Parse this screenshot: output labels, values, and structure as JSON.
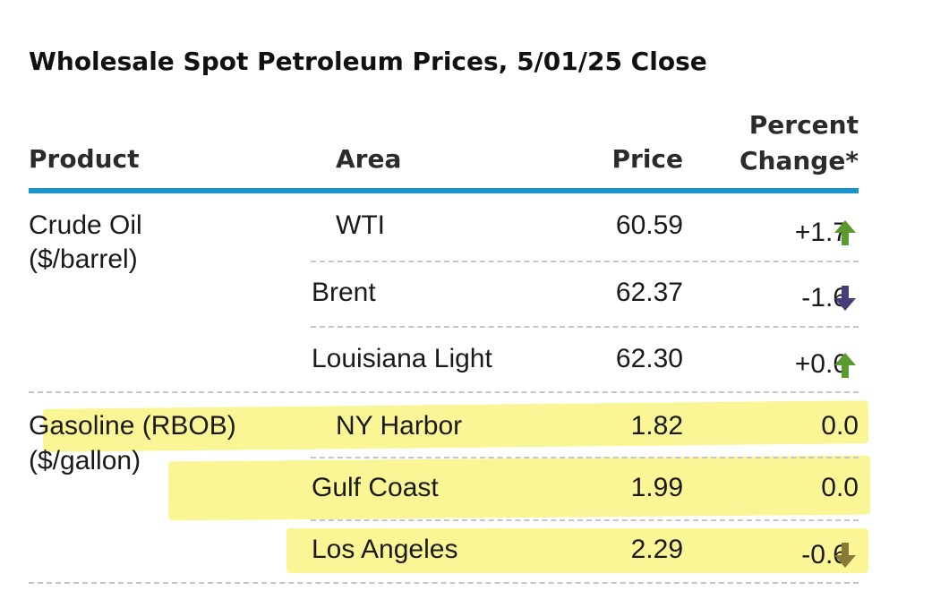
{
  "title": "Wholesale Spot Petroleum Prices, 5/01/25 Close",
  "headers": {
    "product": "Product",
    "area": "Area",
    "price": "Price",
    "percent_line1": "Percent",
    "percent_line2": "Change*"
  },
  "colors": {
    "rule": "#1d94c9",
    "up": "#5a9a2f",
    "down": "#4a3b7a",
    "highlight": "#fbf58a"
  },
  "groups": [
    {
      "product": "Crude Oil",
      "unit": "($/barrel)",
      "rows": [
        {
          "area": "WTI",
          "price": "60.59",
          "change": "+1.7",
          "direction": "up"
        },
        {
          "area": "Brent",
          "price": "62.37",
          "change": "-1.6",
          "direction": "down"
        },
        {
          "area": "Louisiana Light",
          "price": "62.30",
          "change": "+0.6",
          "direction": "up"
        }
      ]
    },
    {
      "product": "Gasoline (RBOB)",
      "unit": "($/gallon)",
      "rows": [
        {
          "area": "NY Harbor",
          "price": "1.82",
          "change": "0.0",
          "direction": "none"
        },
        {
          "area": "Gulf Coast",
          "price": "1.99",
          "change": "0.0",
          "direction": "none"
        },
        {
          "area": "Los Angeles",
          "price": "2.29",
          "change": "-0.6",
          "direction": "down"
        }
      ]
    }
  ]
}
